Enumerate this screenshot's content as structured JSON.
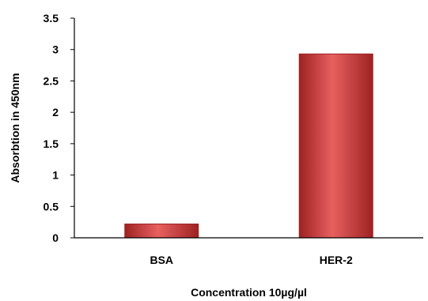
{
  "chart_data": {
    "type": "bar",
    "categories": [
      "BSA",
      "HER-2"
    ],
    "values": [
      0.22,
      2.93
    ],
    "xlabel": "Concentration 10µg/µl",
    "ylabel": "Absorbtion in 450nm",
    "ylim": [
      0,
      3.5
    ],
    "yticks": [
      "0",
      "0.5",
      "1",
      "1.5",
      "2",
      "2.5",
      "3",
      "3.5"
    ],
    "grid": false,
    "legend": "none",
    "colors": {
      "bar": "#d13c3c",
      "bar_light": "#e86060",
      "bar_dark": "#9e2222",
      "axis": "#000000"
    }
  }
}
